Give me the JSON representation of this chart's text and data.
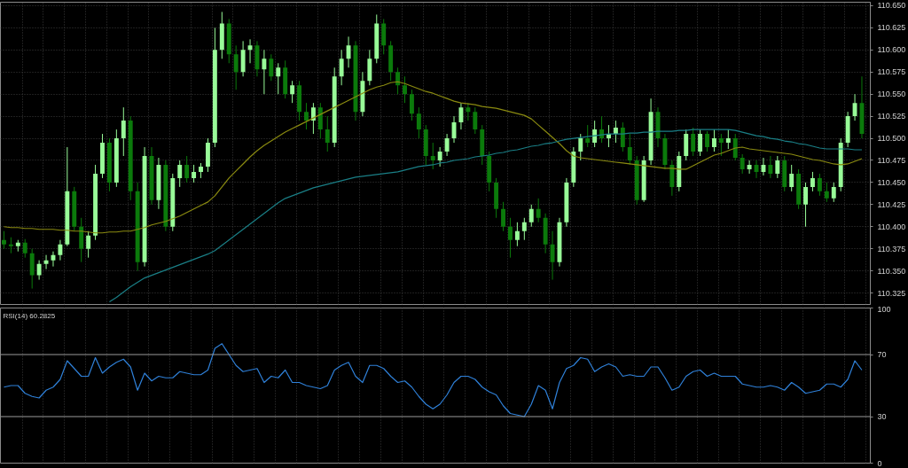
{
  "chart_data": [
    {
      "type": "candlestick",
      "tick_labels": "y",
      "grid": true,
      "categories": [
        null,
        null,
        null,
        null,
        null,
        null,
        null,
        null,
        null,
        null,
        null,
        null,
        null,
        null,
        null,
        null,
        null,
        null,
        null,
        null,
        null,
        null,
        null,
        null,
        null,
        null,
        null,
        null,
        null,
        null,
        null,
        null,
        null,
        null,
        null,
        null,
        null,
        null,
        null,
        null,
        null,
        null,
        null,
        null,
        null,
        null,
        null,
        null,
        null,
        null,
        null,
        null,
        null,
        null,
        null,
        null,
        null,
        null,
        null,
        null,
        null,
        null,
        null,
        null,
        null,
        null,
        null,
        null,
        null,
        null,
        null,
        null,
        null,
        null,
        null,
        null,
        null,
        null,
        null,
        null,
        null,
        null,
        null,
        null,
        null,
        null,
        null,
        null,
        null,
        null,
        null,
        null,
        null,
        null,
        null,
        null,
        null,
        null,
        null,
        null,
        null,
        null,
        null,
        null,
        null,
        null,
        null,
        null,
        null,
        null,
        null,
        null,
        null,
        null,
        null,
        null,
        null,
        null,
        null,
        null,
        null,
        null,
        null
      ],
      "colors": [
        "#0b7a0b",
        "#0b7a0b",
        "#98fb98",
        "#0b7a0b",
        "#0b7a0b",
        "#98fb98",
        "#98fb98",
        "#98fb98",
        "#98fb98",
        "#98fb98",
        "#0b7a0b",
        "#0b7a0b",
        "#98fb98",
        "#98fb98",
        "#98fb98",
        "#0b7a0b",
        "#98fb98",
        "#98fb98",
        "#0b7a0b",
        "#0b7a0b",
        "#98fb98",
        "#0b7a0b",
        "#98fb98",
        "#0b7a0b",
        "#98fb98",
        "#98fb98",
        "#0b7a0b",
        "#98fb98",
        "#98fb98",
        "#98fb98",
        "#98fb98",
        "#98fb98",
        "#0b7a0b",
        "#0b7a0b",
        "#98fb98",
        "#98fb98",
        "#0b7a0b",
        "#98fb98",
        "#0b7a0b",
        "#98fb98",
        "#0b7a0b",
        "#98fb98",
        "#0b7a0b",
        "#0b7a0b",
        "#98fb98",
        "#0b7a0b",
        "#0b7a0b",
        "#98fb98",
        "#98fb98",
        "#98fb98",
        "#0b7a0b",
        "#98fb98",
        "#98fb98",
        "#98fb98",
        "#0b7a0b",
        "#0b7a0b",
        "#0b7a0b",
        "#0b7a0b",
        "#0b7a0b",
        "#0b7a0b",
        "#0b7a0b",
        "#0b7a0b",
        "#98fb98",
        "#98fb98",
        "#98fb98",
        "#98fb98",
        "#0b7a0b",
        "#0b7a0b",
        "#0b7a0b",
        "#0b7a0b",
        "#0b7a0b",
        "#0b7a0b",
        "#0b7a0b",
        "#98fb98",
        "#98fb98",
        "#98fb98",
        "#0b7a0b",
        "#0b7a0b",
        "#0b7a0b",
        "#98fb98",
        "#98fb98",
        "#98fb98",
        "#98fb98",
        "#0b7a0b",
        "#98fb98",
        "#0b7a0b",
        "#98fb98",
        "#98fb98",
        "#0b7a0b",
        "#0b7a0b",
        "#0b7a0b",
        "#98fb98",
        "#98fb98",
        "#0b7a0b",
        "#0b7a0b",
        "#0b7a0b",
        "#98fb98",
        "#98fb98",
        "#0b7a0b",
        "#98fb98",
        "#0b7a0b",
        "#98fb98",
        "#0b7a0b",
        "#98fb98",
        "#0b7a0b",
        "#0b7a0b",
        "#98fb98",
        "#0b7a0b",
        "#98fb98",
        "#0b7a0b",
        "#98fb98",
        "#0b7a0b",
        "#98fb98",
        "#0b7a0b",
        "#98fb98",
        "#98fb98",
        "#0b7a0b",
        "#0b7a0b",
        "#98fb98",
        "#98fb98",
        "#98fb98",
        "#98fb98",
        "#0b7a0b"
      ],
      "ylim": [
        110.312,
        110.654
      ],
      "yticks": [
        110.325,
        {
          "value": 110.35,
          "label": "110.350"
        },
        110.375,
        {
          "value": 110.4,
          "label": "110.400"
        },
        110.425,
        {
          "value": 110.45,
          "label": "110.450"
        },
        110.475,
        {
          "value": 110.5,
          "label": "110.500"
        },
        110.525,
        {
          "value": 110.55,
          "label": "110.550"
        },
        110.575,
        {
          "value": 110.6,
          "label": "110.600"
        },
        110.625,
        {
          "value": 110.65,
          "label": "110.650"
        }
      ],
      "ohlc": [
        [
          110.385,
          110.395,
          110.375,
          110.38
        ],
        [
          110.38,
          110.388,
          110.37,
          110.378
        ],
        [
          110.378,
          110.385,
          110.372,
          110.382
        ],
        [
          110.382,
          110.386,
          110.365,
          110.37
        ],
        [
          110.37,
          110.375,
          110.33,
          110.345
        ],
        [
          110.345,
          110.362,
          110.34,
          110.358
        ],
        [
          110.358,
          110.368,
          110.352,
          110.362
        ],
        [
          110.362,
          110.372,
          110.355,
          110.368
        ],
        [
          110.368,
          110.385,
          110.362,
          110.38
        ],
        [
          110.38,
          110.49,
          110.378,
          110.44
        ],
        [
          110.44,
          110.445,
          110.395,
          110.4
        ],
        [
          110.4,
          110.41,
          110.36,
          110.375
        ],
        [
          110.375,
          110.395,
          110.365,
          110.39
        ],
        [
          110.39,
          110.47,
          110.385,
          110.46
        ],
        [
          110.46,
          110.505,
          110.455,
          110.495
        ],
        [
          110.495,
          110.5,
          110.44,
          110.45
        ],
        [
          110.45,
          110.51,
          110.445,
          110.5
        ],
        [
          110.5,
          110.535,
          110.48,
          110.52
        ],
        [
          110.52,
          110.525,
          110.43,
          110.44
        ],
        [
          110.44,
          110.45,
          110.35,
          110.36
        ],
        [
          110.36,
          110.49,
          110.355,
          110.48
        ],
        [
          110.48,
          110.49,
          110.425,
          110.43
        ],
        [
          110.43,
          110.478,
          110.42,
          110.47
        ],
        [
          110.47,
          110.475,
          110.395,
          110.4
        ],
        [
          110.4,
          110.46,
          110.395,
          110.455
        ],
        [
          110.455,
          110.475,
          110.445,
          110.47
        ],
        [
          110.47,
          110.48,
          110.45,
          110.455
        ],
        [
          110.455,
          110.47,
          110.45,
          110.462
        ],
        [
          110.462,
          110.472,
          110.455,
          110.468
        ],
        [
          110.468,
          110.5,
          110.462,
          110.495
        ],
        [
          110.495,
          110.625,
          110.49,
          110.6
        ],
        [
          110.6,
          110.643,
          110.59,
          110.63
        ],
        [
          110.63,
          110.635,
          110.585,
          110.595
        ],
        [
          110.595,
          110.605,
          110.555,
          110.575
        ],
        [
          110.575,
          110.61,
          110.57,
          110.6
        ],
        [
          110.6,
          110.612,
          110.585,
          110.605
        ],
        [
          110.605,
          110.61,
          110.57,
          110.578
        ],
        [
          110.578,
          110.6,
          110.55,
          110.59
        ],
        [
          110.59,
          110.595,
          110.565,
          110.57
        ],
        [
          110.57,
          110.585,
          110.55,
          110.58
        ],
        [
          110.58,
          110.588,
          110.545,
          110.55
        ],
        [
          110.55,
          110.565,
          110.54,
          110.56
        ],
        [
          110.56,
          110.565,
          110.52,
          110.53
        ],
        [
          110.53,
          110.54,
          110.51,
          110.52
        ],
        [
          110.52,
          110.54,
          110.505,
          110.535
        ],
        [
          110.535,
          110.54,
          110.5,
          110.51
        ],
        [
          110.51,
          110.525,
          110.485,
          110.495
        ],
        [
          110.495,
          110.58,
          110.49,
          110.57
        ],
        [
          110.57,
          110.6,
          110.56,
          110.59
        ],
        [
          110.59,
          110.615,
          110.58,
          110.605
        ],
        [
          110.605,
          110.61,
          110.52,
          110.53
        ],
        [
          110.53,
          110.575,
          110.525,
          110.565
        ],
        [
          110.565,
          110.6,
          110.56,
          110.59
        ],
        [
          110.59,
          110.64,
          110.585,
          110.63
        ],
        [
          110.63,
          110.635,
          110.595,
          110.605
        ],
        [
          110.605,
          110.61,
          110.565,
          110.575
        ],
        [
          110.575,
          110.58,
          110.55,
          110.56
        ],
        [
          110.56,
          110.57,
          110.54,
          110.55
        ],
        [
          110.55,
          110.555,
          110.52,
          110.528
        ],
        [
          110.528,
          110.535,
          110.5,
          110.51
        ],
        [
          110.51,
          110.515,
          110.47,
          110.48
        ],
        [
          110.48,
          110.495,
          110.465,
          110.475
        ],
        [
          110.475,
          110.49,
          110.468,
          110.485
        ],
        [
          110.485,
          110.505,
          110.48,
          110.5
        ],
        [
          110.5,
          110.525,
          110.495,
          110.518
        ],
        [
          110.518,
          110.54,
          110.51,
          110.535
        ],
        [
          110.535,
          110.54,
          110.52,
          110.53
        ],
        [
          110.53,
          110.535,
          110.505,
          110.51
        ],
        [
          110.51,
          110.515,
          110.47,
          110.48
        ],
        [
          110.48,
          110.485,
          110.44,
          110.45
        ],
        [
          110.45,
          110.455,
          110.41,
          110.42
        ],
        [
          110.42,
          110.428,
          110.395,
          110.4
        ],
        [
          110.4,
          110.41,
          110.365,
          110.385
        ],
        [
          110.385,
          110.405,
          110.378,
          110.395
        ],
        [
          110.395,
          110.41,
          110.385,
          110.405
        ],
        [
          110.405,
          110.425,
          110.4,
          110.42
        ],
        [
          110.42,
          110.432,
          110.405,
          110.41
        ],
        [
          110.41,
          110.415,
          110.37,
          110.38
        ],
        [
          110.38,
          110.395,
          110.34,
          110.36
        ],
        [
          110.36,
          110.41,
          110.355,
          110.405
        ],
        [
          110.405,
          110.455,
          110.4,
          110.45
        ],
        [
          110.45,
          110.49,
          110.445,
          110.485
        ],
        [
          110.485,
          110.505,
          110.475,
          110.5
        ],
        [
          110.5,
          110.515,
          110.49,
          110.495
        ],
        [
          110.495,
          110.52,
          110.49,
          110.51
        ],
        [
          110.51,
          110.525,
          110.495,
          110.5
        ],
        [
          110.5,
          110.515,
          110.49,
          110.505
        ],
        [
          110.505,
          110.52,
          110.495,
          110.512
        ],
        [
          110.512,
          110.518,
          110.485,
          110.49
        ],
        [
          110.49,
          110.505,
          110.47,
          110.475
        ],
        [
          110.475,
          110.48,
          110.425,
          110.43
        ],
        [
          110.43,
          110.48,
          110.428,
          110.475
        ],
        [
          110.475,
          110.545,
          110.47,
          110.53
        ],
        [
          110.53,
          110.535,
          110.49,
          110.5
        ],
        [
          110.5,
          110.505,
          110.465,
          110.47
        ],
        [
          110.47,
          110.475,
          110.435,
          110.445
        ],
        [
          110.445,
          110.485,
          110.44,
          110.48
        ],
        [
          110.48,
          110.51,
          110.475,
          110.505
        ],
        [
          110.505,
          110.512,
          110.48,
          110.485
        ],
        [
          110.485,
          110.51,
          110.48,
          110.505
        ],
        [
          110.505,
          110.508,
          110.485,
          110.49
        ],
        [
          110.49,
          110.51,
          110.485,
          110.5
        ],
        [
          110.5,
          110.505,
          110.48,
          110.495
        ],
        [
          110.495,
          110.51,
          110.488,
          110.5
        ],
        [
          110.5,
          110.505,
          110.475,
          110.478
        ],
        [
          110.478,
          110.482,
          110.46,
          110.465
        ],
        [
          110.465,
          110.475,
          110.46,
          110.47
        ],
        [
          110.47,
          110.475,
          110.455,
          110.462
        ],
        [
          110.462,
          110.478,
          110.458,
          110.47
        ],
        [
          110.47,
          110.48,
          110.455,
          110.46
        ],
        [
          110.46,
          110.48,
          110.455,
          110.475
        ],
        [
          110.475,
          110.48,
          110.44,
          110.445
        ],
        [
          110.445,
          110.47,
          110.44,
          110.46
        ],
        [
          110.46,
          110.465,
          110.42,
          110.425
        ],
        [
          110.425,
          110.45,
          110.4,
          110.445
        ],
        [
          110.445,
          110.462,
          110.44,
          110.455
        ],
        [
          110.455,
          110.46,
          110.435,
          110.44
        ],
        [
          110.44,
          110.45,
          110.428,
          110.432
        ],
        [
          110.432,
          110.45,
          110.428,
          110.445
        ],
        [
          110.445,
          110.5,
          110.44,
          110.495
        ],
        [
          110.495,
          110.53,
          110.49,
          110.525
        ],
        [
          110.525,
          110.55,
          110.52,
          110.54
        ],
        [
          110.54,
          110.57,
          110.5,
          110.505
        ]
      ],
      "series": [
        {
          "type": "line",
          "color": "#8a8a10",
          "values": [
            110.4,
            110.399,
            110.399,
            110.398,
            110.398,
            110.397,
            110.397,
            110.397,
            110.396,
            110.396,
            110.395,
            110.395,
            110.394,
            110.393,
            110.393,
            110.394,
            110.394,
            110.395,
            110.395,
            110.397,
            110.399,
            110.402,
            110.404,
            110.406,
            110.409,
            110.412,
            110.416,
            110.42,
            110.424,
            110.428,
            110.435,
            110.445,
            110.455,
            110.463,
            110.471,
            110.479,
            110.486,
            110.492,
            110.497,
            110.502,
            110.507,
            110.511,
            110.515,
            110.519,
            110.523,
            110.527,
            110.531,
            110.535,
            110.539,
            110.543,
            110.547,
            110.551,
            110.555,
            110.558,
            110.56,
            110.563,
            110.564,
            110.562,
            110.559,
            110.556,
            110.553,
            110.551,
            110.548,
            110.545,
            110.542,
            110.54,
            110.539,
            110.538,
            110.536,
            110.535,
            110.534,
            110.532,
            110.53,
            110.528,
            110.526,
            110.522,
            110.515,
            110.508,
            110.501,
            110.494,
            110.486,
            110.48,
            110.478,
            110.477,
            110.476,
            110.475,
            110.474,
            110.473,
            110.472,
            110.471,
            110.47,
            110.469,
            110.468,
            110.467,
            110.466,
            110.466,
            110.465,
            110.465,
            110.469,
            110.473,
            110.477,
            110.481,
            110.483,
            110.486,
            110.489,
            110.49,
            110.488,
            110.487,
            110.486,
            110.485,
            110.484,
            110.483,
            110.482,
            110.48,
            110.478,
            110.476,
            110.475,
            110.473,
            110.471,
            110.47,
            110.471,
            110.474,
            110.477
          ]
        },
        {
          "type": "line",
          "color": "#1a7f86",
          "values": [
            null,
            null,
            null,
            null,
            null,
            null,
            null,
            null,
            null,
            null,
            null,
            null,
            null,
            null,
            null,
            110.315,
            110.32,
            110.326,
            110.332,
            110.337,
            110.342,
            110.345,
            110.348,
            110.351,
            110.354,
            110.357,
            110.36,
            110.363,
            110.366,
            110.369,
            110.373,
            110.379,
            110.385,
            110.391,
            110.397,
            110.403,
            110.409,
            110.415,
            110.421,
            110.427,
            110.432,
            110.435,
            110.438,
            110.441,
            110.444,
            110.446,
            110.448,
            110.45,
            110.452,
            110.454,
            110.456,
            110.457,
            110.458,
            110.459,
            110.46,
            110.461,
            110.462,
            110.464,
            110.466,
            110.468,
            110.469,
            110.47,
            110.472,
            110.473,
            110.475,
            110.476,
            110.477,
            110.479,
            110.48,
            110.481,
            110.483,
            110.484,
            110.486,
            110.487,
            110.489,
            110.491,
            110.492,
            110.494,
            110.495,
            110.497,
            110.499,
            110.5,
            110.501,
            110.502,
            110.503,
            110.504,
            110.505,
            110.505,
            110.505,
            110.506,
            110.506,
            110.507,
            110.507,
            110.508,
            110.508,
            110.508,
            110.509,
            110.509,
            110.51,
            110.51,
            110.51,
            110.51,
            110.51,
            110.51,
            110.509,
            110.507,
            110.505,
            110.503,
            110.502,
            110.5,
            110.499,
            110.497,
            110.496,
            110.494,
            110.493,
            110.491,
            110.489,
            110.488,
            110.488,
            110.488,
            110.488,
            110.487,
            110.487
          ]
        }
      ]
    },
    {
      "type": "line",
      "title": "RSI(14) 60.2825",
      "tick_labels": "y",
      "grid": "x",
      "categories": [
        null,
        null,
        null,
        null,
        null,
        null,
        null,
        null,
        null,
        null,
        null,
        null,
        null,
        null,
        null,
        null,
        null,
        null,
        null,
        null,
        null,
        null,
        null,
        null,
        null,
        null,
        null,
        null,
        null,
        null,
        null,
        null,
        null,
        null,
        null,
        null,
        null,
        null,
        null,
        null,
        null,
        null,
        null,
        null,
        null,
        null,
        null,
        null,
        null,
        null,
        null,
        null,
        null,
        null,
        null,
        null,
        null,
        null,
        null,
        null,
        null,
        null,
        null,
        null,
        null,
        null,
        null,
        null,
        null,
        null,
        null,
        null,
        null,
        null,
        null,
        null,
        null,
        null,
        null,
        null,
        null,
        null,
        null,
        null,
        null,
        null,
        null,
        null,
        null,
        null,
        null,
        null,
        null,
        null,
        null,
        null,
        null,
        null,
        null,
        null,
        null,
        null,
        null,
        null,
        null,
        null,
        null,
        null,
        null,
        null,
        null,
        null,
        null,
        null,
        null,
        null,
        null,
        null,
        null,
        null,
        null,
        null,
        null
      ],
      "ylim": [
        0,
        100
      ],
      "yticks": [
        0,
        30,
        70,
        100
      ],
      "ref_lines": [
        {
          "axis": "y",
          "value": 70,
          "color": "#9a9a9a"
        },
        {
          "axis": "y",
          "value": 30,
          "color": "#9a9a9a"
        }
      ],
      "series": [
        {
          "color": "#2f80d8",
          "values": [
            49,
            50,
            50,
            45,
            43,
            42,
            47,
            49,
            54,
            66,
            61,
            56,
            56,
            68,
            58,
            62,
            65,
            67,
            62,
            47,
            58,
            53,
            56,
            55,
            55,
            59,
            58,
            57,
            57,
            60,
            74,
            77,
            70,
            63,
            59,
            60,
            61,
            52,
            56,
            55,
            60,
            52,
            52,
            50,
            49,
            48,
            50,
            60,
            63,
            65,
            56,
            52,
            63,
            63,
            61,
            56,
            52,
            53,
            49,
            43,
            38,
            35,
            38,
            44,
            52,
            56,
            56,
            54,
            49,
            46,
            44,
            37,
            32,
            31,
            30,
            38,
            50,
            47,
            35,
            52,
            61,
            63,
            68,
            67,
            59,
            62,
            64,
            62,
            56,
            57,
            56,
            56,
            62,
            62,
            55,
            47,
            49,
            56,
            59,
            60,
            56,
            58,
            56,
            56,
            56,
            51,
            50,
            49,
            49,
            50,
            49,
            47,
            52,
            49,
            45,
            46,
            47,
            51,
            51,
            49,
            54,
            66,
            60
          ]
        }
      ]
    }
  ]
}
